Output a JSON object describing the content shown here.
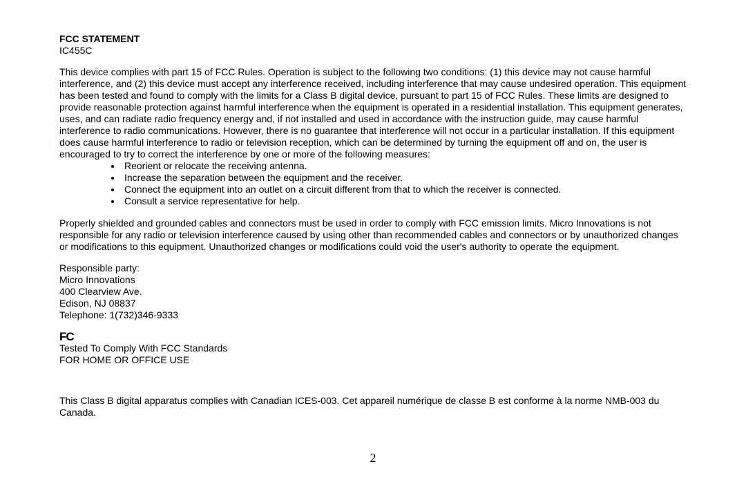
{
  "title": "FCC STATEMENT",
  "model": "IC455C",
  "main_para": "This device complies with part 15 of FCC Rules. Operation is subject to the following two conditions: (1) this device may not cause harmful interference, and (2) this device must accept any interference received, including interference that may cause undesired operation. This equipment has been tested and found to comply with the limits for a Class B digital device, pursuant to part 15 of FCC Rules. These limits are designed to provide reasonable protection against harmful interference when the equipment is operated in a residential installation. This equipment generates, uses, and can radiate radio frequency energy and, if not installed and used in accordance with the instruction guide, may cause harmful interference to radio communications. However, there is no guarantee that interference will not occur in a particular installation.  If this equipment does cause harmful interference to radio or television reception, which can be determined by turning the equipment off and on, the user is encouraged to try to correct the interference by one or more of the following measures:",
  "bullets": [
    "Reorient or relocate the receiving antenna.",
    "Increase the separation between the equipment and the receiver.",
    "Connect the equipment into an outlet on a circuit different from that to which the receiver is connected.",
    "Consult a service representative for help."
  ],
  "shielded_para": "Properly shielded and grounded cables and connectors must be used in order to comply with FCC emission limits. Micro Innovations is not responsible for any radio or television interference caused by using other than recommended cables and connectors or by unauthorized changes or modifications to this equipment. Unauthorized changes or modifications could void the user's authority to operate the equipment.",
  "address": {
    "line1": "Responsible party:",
    "line2": "Micro Innovations",
    "line3": "400 Clearview Ave.",
    "line4": "Edison, NJ 08837",
    "line5": "Telephone: 1(732)346-9333"
  },
  "fcc_logo_text": "FC",
  "tested_line1": "Tested To Comply With FCC Standards",
  "tested_line2": "FOR HOME OR OFFICE USE",
  "canada_para": "This Class B digital apparatus complies with Canadian ICES-003. Cet appareil numérique de classe B est conforme à la norme NMB-003 du Canada.",
  "page_number": "2",
  "colors": {
    "background": "#ffffff",
    "text": "#000000"
  },
  "font": {
    "body_family": "Arial",
    "body_size_pt": 10,
    "page_number_family": "Times New Roman",
    "page_number_size_pt": 13
  }
}
